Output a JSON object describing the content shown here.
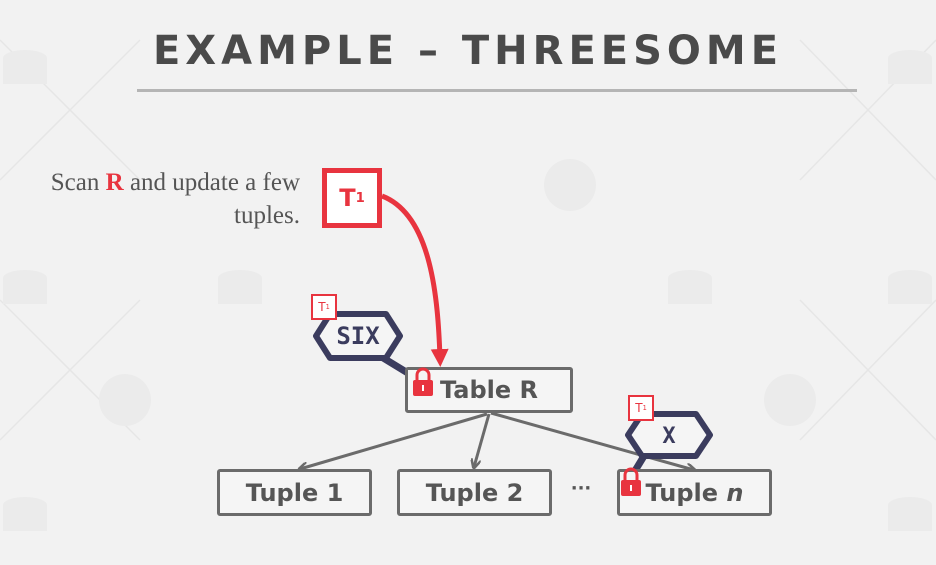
{
  "slide": {
    "title": "EXAMPLE – THREESOME",
    "caption": {
      "before": "Scan ",
      "emphasis": "R",
      "after": " and update a few tuples."
    }
  },
  "transaction": {
    "label": "T",
    "sub": "1"
  },
  "locks": [
    {
      "mode": "SIX",
      "holder": "T",
      "holder_sub": "1",
      "target": "Table R"
    },
    {
      "mode": "X",
      "holder": "T",
      "holder_sub": "1",
      "target": "Tuple n"
    }
  ],
  "nodes": {
    "table": "Table R",
    "tuple1": "Tuple 1",
    "tuple2": "Tuple 2",
    "ellipsis": "···",
    "tuplen": {
      "word": "Tuple ",
      "var": "n"
    }
  },
  "colors": {
    "accent": "#e8343f",
    "lock_outline": "#3b3c5e",
    "node_border": "#6b6b6b",
    "text": "#555555"
  }
}
